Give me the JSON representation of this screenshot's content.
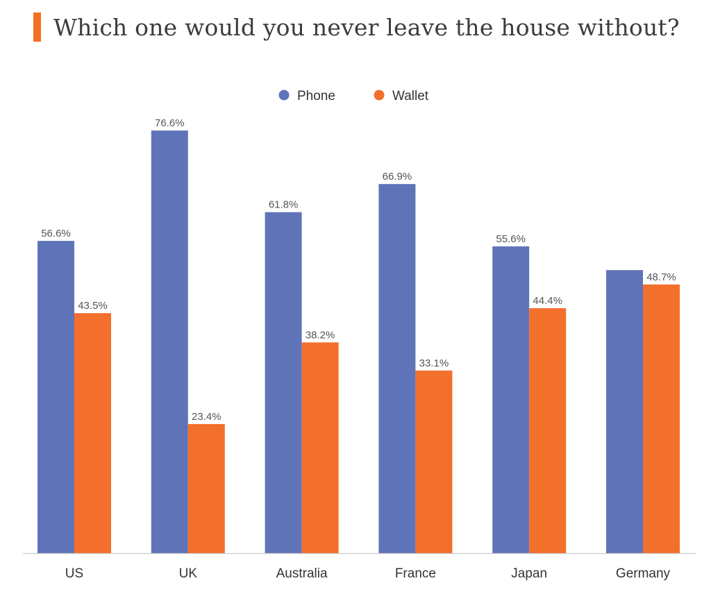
{
  "chart_data": {
    "type": "bar",
    "title": "Which one would you never leave the house without?",
    "categories": [
      "US",
      "UK",
      "Australia",
      "France",
      "Japan",
      "Germany"
    ],
    "series": [
      {
        "name": "Phone",
        "color": "#5f74b8",
        "values": [
          56.6,
          76.6,
          61.8,
          66.9,
          55.6,
          51.3
        ],
        "labels": [
          "56.6%",
          "76.6%",
          "61.8%",
          "66.9%",
          "55.6%",
          ""
        ]
      },
      {
        "name": "Wallet",
        "color": "#f36f2c",
        "values": [
          43.5,
          23.4,
          38.2,
          33.1,
          44.4,
          48.7
        ],
        "labels": [
          "43.5%",
          "23.4%",
          "38.2%",
          "33.1%",
          "44.4%",
          "48.7%"
        ]
      }
    ],
    "xlabel": "",
    "ylabel": "",
    "ylim": [
      0,
      80
    ],
    "grid": false,
    "legend": "top-center",
    "accent_color": "#f36f21"
  }
}
